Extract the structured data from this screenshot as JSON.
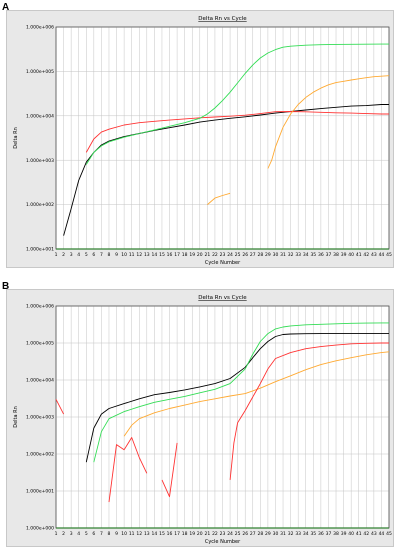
{
  "panels": [
    {
      "letter": "A",
      "chart_data": {
        "type": "line",
        "title": "Delta Rn vs Cycle",
        "xlabel": "Cycle Number",
        "ylabel": "Delta Rn",
        "yscale": "log",
        "ylim": [
          10,
          1000000
        ],
        "xlim": [
          1,
          45
        ],
        "ytick_labels": [
          "1.000e+001",
          "1.000e+002",
          "1.000e+003",
          "1.000e+004",
          "1.000e+005",
          "1.000e+006"
        ],
        "ytick_values": [
          10,
          100,
          1000,
          10000,
          100000,
          1000000
        ],
        "x_ticks": [
          1,
          2,
          3,
          4,
          5,
          6,
          7,
          8,
          9,
          10,
          11,
          12,
          13,
          14,
          15,
          16,
          17,
          18,
          19,
          20,
          21,
          22,
          23,
          24,
          25,
          26,
          27,
          28,
          29,
          30,
          31,
          32,
          33,
          34,
          35,
          36,
          37,
          38,
          39,
          40,
          41,
          42,
          43,
          44,
          45
        ],
        "grid": true,
        "series": [
          {
            "color": "#000000",
            "x": [
              2,
              3,
              4,
              5,
              6,
              7,
              8,
              10,
              12,
              14,
              16,
              18,
              20,
              22,
              24,
              26,
              28,
              30,
              32,
              34,
              36,
              38,
              40,
              42,
              44,
              45
            ],
            "y": [
              20,
              80,
              350,
              900,
              1500,
              2200,
              2700,
              3400,
              4000,
              4700,
              5400,
              6200,
              7200,
              8000,
              8800,
              9500,
              10400,
              11500,
              12500,
              13500,
              14500,
              15500,
              16500,
              17000,
              18000,
              18000
            ]
          },
          {
            "color": "#ff3333",
            "x": [
              5,
              6,
              7,
              8,
              10,
              12,
              14,
              16,
              18,
              20,
              22,
              24,
              26,
              28,
              30,
              32,
              34,
              36,
              38,
              40,
              42,
              44,
              45
            ],
            "y": [
              1500,
              3000,
              4300,
              5000,
              6200,
              7000,
              7500,
              8000,
              8500,
              9000,
              9400,
              9800,
              10300,
              11200,
              12400,
              12500,
              12300,
              12000,
              11700,
              11500,
              11200,
              11000,
              11000
            ]
          },
          {
            "color": "#33dd55",
            "x": [
              5,
              6,
              7,
              8,
              10,
              12,
              14,
              16,
              18,
              20,
              21,
              22,
              23,
              24,
              25,
              26,
              27,
              28,
              29,
              30,
              31,
              32,
              34,
              36,
              38,
              40,
              42,
              44,
              45
            ],
            "y": [
              800,
              1500,
              2100,
              2600,
              3300,
              4000,
              4800,
              5800,
              7000,
              8800,
              11000,
              15000,
              22000,
              34000,
              55000,
              90000,
              140000,
              200000,
              260000,
              310000,
              350000,
              370000,
              390000,
              400000,
              405000,
              408000,
              410000,
              412000,
              412000
            ]
          },
          {
            "color": "#ffaa33",
            "x": [
              21,
              22,
              23,
              24
            ],
            "y": [
              100,
              140,
              160,
              180
            ]
          },
          {
            "color": "#ffaa33",
            "x": [
              29,
              29.5,
              30,
              31,
              32,
              33,
              34,
              35,
              36,
              37,
              38,
              39,
              40,
              41,
              42,
              43,
              44,
              45
            ],
            "y": [
              650,
              1000,
              2000,
              5500,
              11000,
              18000,
              26000,
              34000,
              42000,
              50000,
              56000,
              60000,
              64000,
              68000,
              72000,
              76000,
              78000,
              80000
            ]
          }
        ]
      }
    },
    {
      "letter": "B",
      "chart_data": {
        "type": "line",
        "title": "Delta Rn vs Cycle",
        "xlabel": "Cycle Number",
        "ylabel": "Delta Rn",
        "yscale": "log",
        "ylim": [
          1,
          1000000
        ],
        "xlim": [
          1,
          45
        ],
        "ytick_labels": [
          "1.000e+000",
          "1.000e+001",
          "1.000e+002",
          "1.000e+003",
          "1.000e+004",
          "1.000e+005",
          "1.000e+006"
        ],
        "ytick_values": [
          1,
          10,
          100,
          1000,
          10000,
          100000,
          1000000
        ],
        "x_ticks": [
          1,
          2,
          3,
          4,
          5,
          6,
          7,
          8,
          9,
          10,
          11,
          12,
          13,
          14,
          15,
          16,
          17,
          18,
          19,
          20,
          21,
          22,
          23,
          24,
          25,
          26,
          27,
          28,
          29,
          30,
          31,
          32,
          33,
          34,
          35,
          36,
          37,
          38,
          39,
          40,
          41,
          42,
          43,
          44,
          45
        ],
        "grid": true,
        "series": [
          {
            "color": "#ff3333",
            "x": [
              1,
              2
            ],
            "y": [
              3000,
              1200
            ]
          },
          {
            "color": "#000000",
            "x": [
              5,
              6,
              7,
              8,
              10,
              12,
              14,
              16,
              18,
              20,
              22,
              24,
              26,
              27,
              28,
              29,
              30,
              31,
              32,
              34,
              36,
              38,
              40,
              42,
              44,
              45
            ],
            "y": [
              60,
              500,
              1200,
              1700,
              2300,
              3100,
              4000,
              4600,
              5400,
              6500,
              8000,
              11000,
              22000,
              40000,
              70000,
              110000,
              150000,
              170000,
              175000,
              178000,
              180000,
              180000,
              180000,
              180000,
              180000,
              180000
            ]
          },
          {
            "color": "#33dd55",
            "x": [
              6,
              7,
              8,
              10,
              12,
              14,
              16,
              18,
              20,
              22,
              24,
              26,
              27,
              28,
              29,
              30,
              31,
              32,
              34,
              36,
              38,
              40,
              42,
              44,
              45
            ],
            "y": [
              60,
              400,
              900,
              1400,
              1900,
              2500,
              3000,
              3600,
              4500,
              5600,
              8000,
              20000,
              50000,
              110000,
              180000,
              240000,
              270000,
              290000,
              310000,
              320000,
              330000,
              340000,
              345000,
              350000,
              350000
            ]
          },
          {
            "color": "#ffaa33",
            "x": [
              10,
              11,
              12,
              14,
              16,
              18,
              20,
              22,
              24,
              26,
              28,
              30,
              32,
              34,
              36,
              38,
              40,
              42,
              44,
              45
            ],
            "y": [
              300,
              600,
              900,
              1300,
              1700,
              2100,
              2600,
              3100,
              3700,
              4300,
              6000,
              9000,
              13000,
              19000,
              26000,
              33000,
              40000,
              48000,
              55000,
              58000
            ]
          },
          {
            "color": "#ff3333",
            "x": [
              8,
              9,
              10,
              11,
              12,
              13
            ],
            "y": [
              5,
              180,
              130,
              280,
              80,
              30
            ]
          },
          {
            "color": "#ff3333",
            "x": [
              15,
              16,
              17
            ],
            "y": [
              20,
              7,
              200
            ]
          },
          {
            "color": "#ff3333",
            "x": [
              24,
              24.5,
              25,
              26,
              27,
              28,
              29,
              30,
              32,
              34,
              36,
              38,
              40,
              42,
              44,
              45
            ],
            "y": [
              20,
              200,
              700,
              1500,
              3500,
              8000,
              20000,
              38000,
              55000,
              70000,
              80000,
              88000,
              95000,
              98000,
              100000,
              100000
            ]
          }
        ]
      }
    }
  ]
}
